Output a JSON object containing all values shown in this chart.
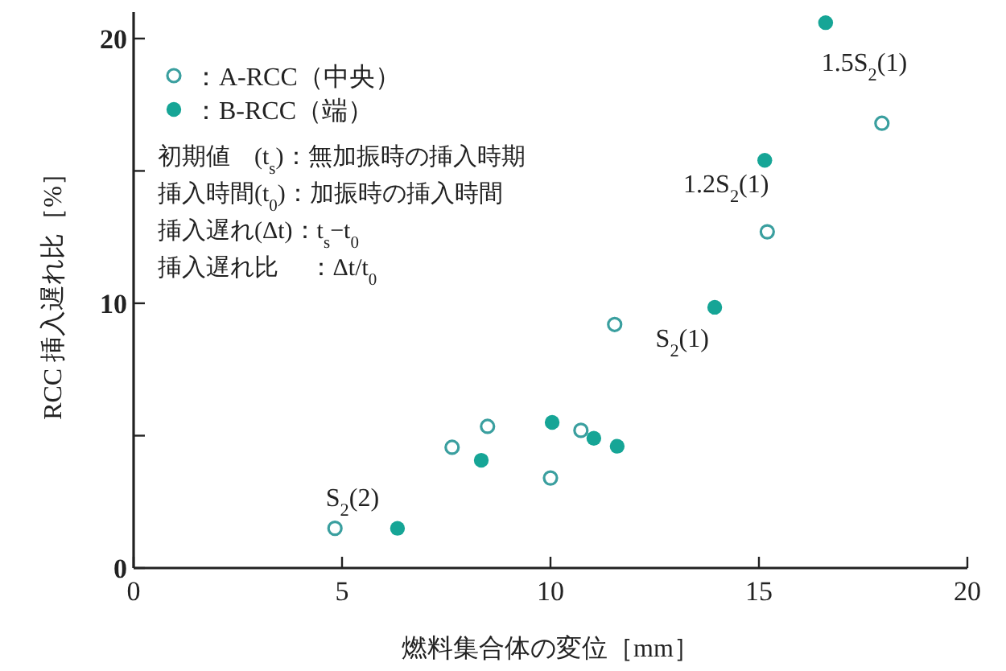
{
  "chart_data": {
    "type": "scatter",
    "xlabel": "燃料集合体の変位［mm］",
    "ylabel": "RCC 挿入遅れ比［%］",
    "xlim": [
      0,
      20
    ],
    "xticks": [
      0,
      5,
      10,
      15,
      20
    ],
    "ylim": [
      0,
      21
    ],
    "yticks": [
      0,
      {
        "value": 5,
        "label": null
      },
      10,
      {
        "value": 15,
        "label": null
      },
      20
    ],
    "legend": "top left",
    "grid": false,
    "series": [
      {
        "name": "：A-RCC（中央）",
        "color": "#3a9f9f",
        "marker": "open circle",
        "x": [
          4.83,
          7.64,
          8.49,
          10.0,
          10.73,
          11.54,
          15.2,
          17.95
        ],
        "values": [
          1.5,
          4.56,
          5.35,
          3.4,
          5.2,
          9.2,
          12.7,
          16.8
        ]
      },
      {
        "name": "：B-RCC（端）",
        "color": "#16a596",
        "marker": "circle",
        "x": [
          6.33,
          8.34,
          10.04,
          11.04,
          11.6,
          13.94,
          15.14,
          16.6
        ],
        "values": [
          1.5,
          4.07,
          5.5,
          4.9,
          4.6,
          9.85,
          15.4,
          20.6
        ]
      }
    ],
    "annotations": [
      "初期値　(t$_{s}$)：無加振時の挿入時期",
      "挿入時間(t$_{0}$)：加振時の挿入時間",
      "挿入遅れ(Δt)：t$_{s}$−t$_{0}$",
      "挿入遅れ比　 ：Δt/t$_{0}$",
      {
        "text": "S$_{2}$(2)",
        "x": 6.33,
        "y": 1.5
      },
      {
        "text": "S$_{2}$(1)",
        "x": 11.54,
        "y": 9.2
      },
      {
        "text": "1.2S$_{2}$(1)",
        "x": 15.14,
        "y": 15.4
      },
      {
        "text": "1.5S$_{2}$(1)",
        "x": 16.6,
        "y": 20.6
      }
    ]
  }
}
